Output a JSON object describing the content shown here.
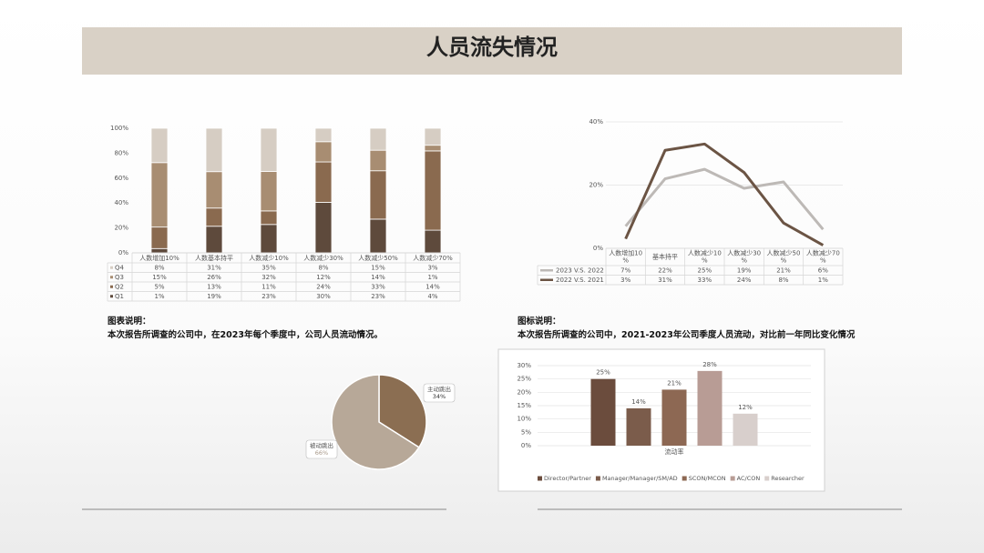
{
  "page_title": "人员流失情况",
  "chart_data": [
    {
      "type": "bar",
      "stacked": "percent",
      "categories": [
        "人数增加10%",
        "人数基本持平",
        "人数减少10%",
        "人数减少30%",
        "人数减少50%",
        "人数减少70%"
      ],
      "series": [
        {
          "name": "Q1",
          "color": "#5e4a3c",
          "values": [
            1,
            19,
            23,
            30,
            23,
            4
          ],
          "value_labels": [
            "1%",
            "19%",
            "23%",
            "30%",
            "23%",
            "4%"
          ]
        },
        {
          "name": "Q2",
          "color": "#8a6a4f",
          "values": [
            5,
            13,
            11,
            24,
            33,
            14
          ],
          "value_labels": [
            "5%",
            "13%",
            "11%",
            "24%",
            "33%",
            "14%"
          ]
        },
        {
          "name": "Q3",
          "color": "#a88d72",
          "values": [
            15,
            26,
            32,
            12,
            14,
            1
          ],
          "value_labels": [
            "15%",
            "26%",
            "32%",
            "12%",
            "14%",
            "1%"
          ]
        },
        {
          "name": "Q4",
          "color": "#d6cdc3",
          "values": [
            8,
            31,
            35,
            8,
            15,
            3
          ],
          "value_labels": [
            "8%",
            "31%",
            "35%",
            "8%",
            "15%",
            "3%"
          ]
        }
      ],
      "ylim": [
        0,
        100
      ],
      "yticks": [
        {
          "value": 0,
          "label": "0%"
        },
        {
          "value": 20,
          "label": "20%"
        },
        {
          "value": 40,
          "label": "40%"
        },
        {
          "value": 60,
          "label": "60%"
        },
        {
          "value": 80,
          "label": "80%"
        },
        {
          "value": 100,
          "label": "100%"
        }
      ],
      "grid": false,
      "note_title": "图表说明：",
      "note": "本次报告所调查的公司中，在2023年每个季度中，公司人员流动情况。"
    },
    {
      "type": "line",
      "categories": [
        "人数增加10%",
        "基本持平",
        "人数减少10%",
        "人数减少30%",
        "人数减少50%",
        "人数减少70%"
      ],
      "series": [
        {
          "name": "2023 V.S. 2022",
          "color": "#bdb9b6",
          "values": [
            7,
            22,
            25,
            19,
            21,
            6
          ],
          "value_labels": [
            "7%",
            "22%",
            "25%",
            "19%",
            "21%",
            "6%"
          ]
        },
        {
          "name": "2022 V.S. 2021",
          "color": "#6b5444",
          "values": [
            3,
            31,
            33,
            24,
            8,
            1
          ],
          "value_labels": [
            "3%",
            "31%",
            "33%",
            "24%",
            "8%",
            "1%"
          ]
        }
      ],
      "ylim": [
        0,
        40
      ],
      "yticks": [
        {
          "value": 0,
          "label": "0%"
        },
        {
          "value": 20,
          "label": "20%"
        },
        {
          "value": 40,
          "label": "40%"
        }
      ],
      "grid": true,
      "note_title": "图标说明：",
      "note": "本次报告所调查的公司中，2021-2023年公司季度人员流动，对比前一年同比变化情况"
    },
    {
      "type": "pie",
      "categories": [
        "主动跳出",
        "被动跳出"
      ],
      "values": [
        34,
        66
      ],
      "value_labels": [
        "34%",
        "66%"
      ],
      "colors": [
        "#8b6e52",
        "#b7a898"
      ]
    },
    {
      "type": "bar",
      "categories": [
        "流动率"
      ],
      "series": [
        {
          "name": "Director/Partner",
          "color": "#6b4c3d",
          "values": [
            25
          ],
          "value_labels": [
            "25%"
          ]
        },
        {
          "name": "Manager/Manager/SM/AD",
          "color": "#7b5c4b",
          "values": [
            14
          ],
          "value_labels": [
            "14%"
          ]
        },
        {
          "name": "SCON/MCON",
          "color": "#8d6853",
          "values": [
            21
          ],
          "value_labels": [
            "21%"
          ]
        },
        {
          "name": "AC/CON",
          "color": "#b89c95",
          "values": [
            28
          ],
          "value_labels": [
            "28%"
          ]
        },
        {
          "name": "Researcher",
          "color": "#d8cfcc",
          "values": [
            12
          ],
          "value_labels": [
            "12%"
          ]
        }
      ],
      "ylim": [
        0,
        30
      ],
      "yticks": [
        {
          "value": 0,
          "label": "0%"
        },
        {
          "value": 5,
          "label": "5%"
        },
        {
          "value": 10,
          "label": "10%"
        },
        {
          "value": 15,
          "label": "15%"
        },
        {
          "value": 20,
          "label": "20%"
        },
        {
          "value": 25,
          "label": "25%"
        },
        {
          "value": 30,
          "label": "30%"
        }
      ],
      "grid": true,
      "legend": "bottom"
    }
  ]
}
